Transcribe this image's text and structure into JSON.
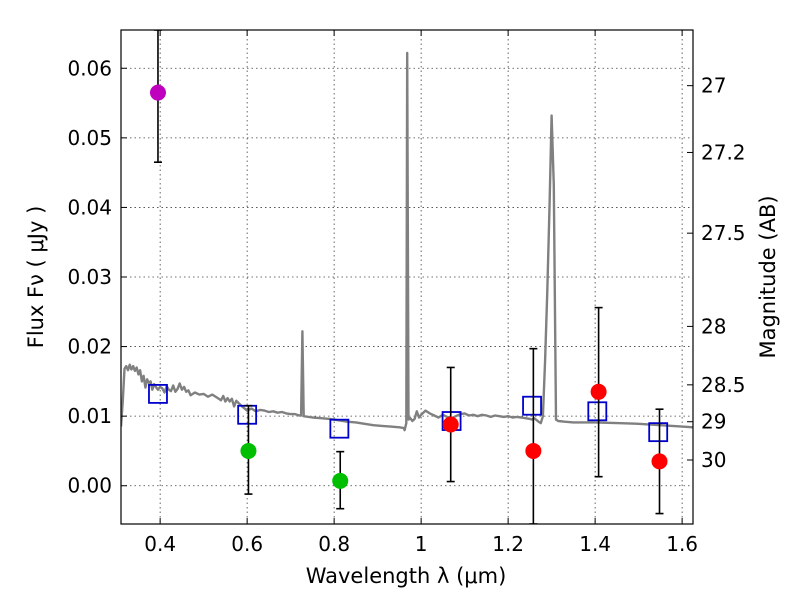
{
  "chart_data": {
    "type": "scatter",
    "title": "",
    "xlabel": "Wavelength  λ (μm)",
    "ylabel": "Flux  Fν  ( μJy )",
    "y2label": "Magnitude (AB)",
    "xlim": [
      0.31,
      1.625
    ],
    "ylim": [
      -0.0055,
      0.0655
    ],
    "grid": true,
    "x_ticks": [
      {
        "value": 0.4,
        "label": "0.4"
      },
      {
        "value": 0.6,
        "label": "0.6"
      },
      {
        "value": 0.8,
        "label": "0.8"
      },
      {
        "value": 1.0,
        "label": "1"
      },
      {
        "value": 1.2,
        "label": "1.2"
      },
      {
        "value": 1.4,
        "label": "1.4"
      },
      {
        "value": 1.6,
        "label": "1.6"
      }
    ],
    "y_ticks": [
      {
        "value": 0.0,
        "label": "0.00"
      },
      {
        "value": 0.01,
        "label": "0.01"
      },
      {
        "value": 0.02,
        "label": "0.02"
      },
      {
        "value": 0.03,
        "label": "0.03"
      },
      {
        "value": 0.04,
        "label": "0.04"
      },
      {
        "value": 0.05,
        "label": "0.05"
      },
      {
        "value": 0.06,
        "label": "0.06"
      }
    ],
    "y2_ticks": [
      {
        "flux": 0.0575,
        "label": "27"
      },
      {
        "flux": 0.0479,
        "label": "27.2"
      },
      {
        "flux": 0.0363,
        "label": "27.5"
      },
      {
        "flux": 0.0229,
        "label": "28"
      },
      {
        "flux": 0.0145,
        "label": "28.5"
      },
      {
        "flux": 0.0092,
        "label": "29"
      },
      {
        "flux": 0.0037,
        "label": "30"
      }
    ],
    "series": [
      {
        "name": "model-spectrum",
        "kind": "line",
        "color": "#808080",
        "points": [
          [
            0.31,
            0.0085
          ],
          [
            0.314,
            0.012
          ],
          [
            0.318,
            0.0168
          ],
          [
            0.322,
            0.0172
          ],
          [
            0.326,
            0.0166
          ],
          [
            0.33,
            0.0174
          ],
          [
            0.334,
            0.0167
          ],
          [
            0.338,
            0.0172
          ],
          [
            0.342,
            0.0165
          ],
          [
            0.346,
            0.017
          ],
          [
            0.35,
            0.016
          ],
          [
            0.354,
            0.0166
          ],
          [
            0.358,
            0.015
          ],
          [
            0.362,
            0.0158
          ],
          [
            0.366,
            0.0141
          ],
          [
            0.37,
            0.0153
          ],
          [
            0.374,
            0.0148
          ],
          [
            0.378,
            0.015
          ],
          [
            0.382,
            0.0138
          ],
          [
            0.386,
            0.0146
          ],
          [
            0.39,
            0.0142
          ],
          [
            0.395,
            0.0138
          ],
          [
            0.4,
            0.0142
          ],
          [
            0.405,
            0.014
          ],
          [
            0.41,
            0.0134
          ],
          [
            0.415,
            0.0143
          ],
          [
            0.42,
            0.0138
          ],
          [
            0.425,
            0.0136
          ],
          [
            0.43,
            0.0144
          ],
          [
            0.435,
            0.0135
          ],
          [
            0.44,
            0.0139
          ],
          [
            0.445,
            0.0147
          ],
          [
            0.45,
            0.0138
          ],
          [
            0.455,
            0.0142
          ],
          [
            0.46,
            0.0135
          ],
          [
            0.465,
            0.0137
          ],
          [
            0.47,
            0.013
          ],
          [
            0.48,
            0.0134
          ],
          [
            0.49,
            0.0131
          ],
          [
            0.5,
            0.0132
          ],
          [
            0.51,
            0.0128
          ],
          [
            0.52,
            0.0131
          ],
          [
            0.53,
            0.0127
          ],
          [
            0.54,
            0.0123
          ],
          [
            0.545,
            0.0129
          ],
          [
            0.55,
            0.0121
          ],
          [
            0.555,
            0.0126
          ],
          [
            0.56,
            0.0121
          ],
          [
            0.565,
            0.0125
          ],
          [
            0.57,
            0.0114
          ],
          [
            0.575,
            0.0122
          ],
          [
            0.58,
            0.0119
          ],
          [
            0.59,
            0.0113
          ],
          [
            0.6,
            0.0108
          ],
          [
            0.61,
            0.0111
          ],
          [
            0.62,
            0.0107
          ],
          [
            0.63,
            0.0109
          ],
          [
            0.64,
            0.0108
          ],
          [
            0.65,
            0.0106
          ],
          [
            0.66,
            0.0107
          ],
          [
            0.67,
            0.0105
          ],
          [
            0.68,
            0.0106
          ],
          [
            0.69,
            0.0104
          ],
          [
            0.7,
            0.0103
          ],
          [
            0.71,
            0.0103
          ],
          [
            0.72,
            0.0101
          ],
          [
            0.724,
            0.0101
          ],
          [
            0.727,
            0.0222
          ],
          [
            0.73,
            0.01
          ],
          [
            0.75,
            0.0098
          ],
          [
            0.77,
            0.0097
          ],
          [
            0.79,
            0.0096
          ],
          [
            0.81,
            0.0094
          ],
          [
            0.83,
            0.0092
          ],
          [
            0.85,
            0.0091
          ],
          [
            0.87,
            0.0089
          ],
          [
            0.89,
            0.0087
          ],
          [
            0.91,
            0.0086
          ],
          [
            0.93,
            0.0085
          ],
          [
            0.95,
            0.0084
          ],
          [
            0.96,
            0.0083
          ],
          [
            0.962,
            0.008
          ],
          [
            0.966,
            0.009
          ],
          [
            0.968,
            0.0622
          ],
          [
            0.971,
            0.0095
          ],
          [
            0.975,
            0.0097
          ],
          [
            0.98,
            0.0093
          ],
          [
            0.985,
            0.0096
          ],
          [
            0.99,
            0.0107
          ],
          [
            0.995,
            0.0098
          ],
          [
            1.0,
            0.0102
          ],
          [
            1.01,
            0.0108
          ],
          [
            1.02,
            0.0104
          ],
          [
            1.03,
            0.0101
          ],
          [
            1.04,
            0.0098
          ],
          [
            1.05,
            0.0102
          ],
          [
            1.06,
            0.0099
          ],
          [
            1.07,
            0.0097
          ],
          [
            1.08,
            0.01
          ],
          [
            1.09,
            0.0103
          ],
          [
            1.1,
            0.0104
          ],
          [
            1.11,
            0.0101
          ],
          [
            1.12,
            0.0102
          ],
          [
            1.13,
            0.01
          ],
          [
            1.14,
            0.0102
          ],
          [
            1.15,
            0.0101
          ],
          [
            1.16,
            0.0099
          ],
          [
            1.17,
            0.0101
          ],
          [
            1.18,
            0.01
          ],
          [
            1.19,
            0.0099
          ],
          [
            1.2,
            0.01
          ],
          [
            1.21,
            0.0098
          ],
          [
            1.22,
            0.0099
          ],
          [
            1.23,
            0.0098
          ],
          [
            1.24,
            0.0097
          ],
          [
            1.25,
            0.0096
          ],
          [
            1.255,
            0.0095
          ],
          [
            1.26,
            0.0097
          ],
          [
            1.27,
            0.0092
          ],
          [
            1.275,
            0.009
          ],
          [
            1.28,
            0.01
          ],
          [
            1.285,
            0.018
          ],
          [
            1.29,
            0.028
          ],
          [
            1.295,
            0.04
          ],
          [
            1.3,
            0.0532
          ],
          [
            1.305,
            0.0432
          ],
          [
            1.31,
            0.0095
          ],
          [
            1.315,
            0.0093
          ],
          [
            1.33,
            0.0092
          ],
          [
            1.35,
            0.0091
          ],
          [
            1.4,
            0.0091
          ],
          [
            1.45,
            0.009
          ],
          [
            1.5,
            0.0089
          ],
          [
            1.55,
            0.0087
          ],
          [
            1.6,
            0.0085
          ],
          [
            1.625,
            0.0084
          ]
        ]
      },
      {
        "name": "model-photometry",
        "kind": "open-square",
        "color": "#0000cc",
        "points": [
          [
            0.395,
            0.0132
          ],
          [
            0.6,
            0.0102
          ],
          [
            0.812,
            0.0082
          ],
          [
            1.07,
            0.0093
          ],
          [
            1.255,
            0.0115
          ],
          [
            1.405,
            0.0107
          ],
          [
            1.545,
            0.0077
          ]
        ]
      },
      {
        "name": "purple-observation",
        "kind": "filled-circle",
        "color": "#bf00bf",
        "points": [
          [
            0.395,
            0.0565,
            0.0465,
            0.0655
          ]
        ]
      },
      {
        "name": "green-observations",
        "kind": "filled-circle",
        "color": "#00bf00",
        "points": [
          [
            0.603,
            0.005,
            -0.0012,
            0.0115
          ],
          [
            0.814,
            0.0007,
            -0.0033,
            0.0049
          ]
        ]
      },
      {
        "name": "red-observations",
        "kind": "filled-circle",
        "color": "#ff0000",
        "points": [
          [
            1.068,
            0.0088,
            0.0006,
            0.017
          ],
          [
            1.258,
            0.005,
            -0.0055,
            0.0197
          ],
          [
            1.408,
            0.0135,
            0.0013,
            0.0256
          ],
          [
            1.548,
            0.0035,
            -0.004,
            0.011
          ]
        ]
      }
    ]
  }
}
